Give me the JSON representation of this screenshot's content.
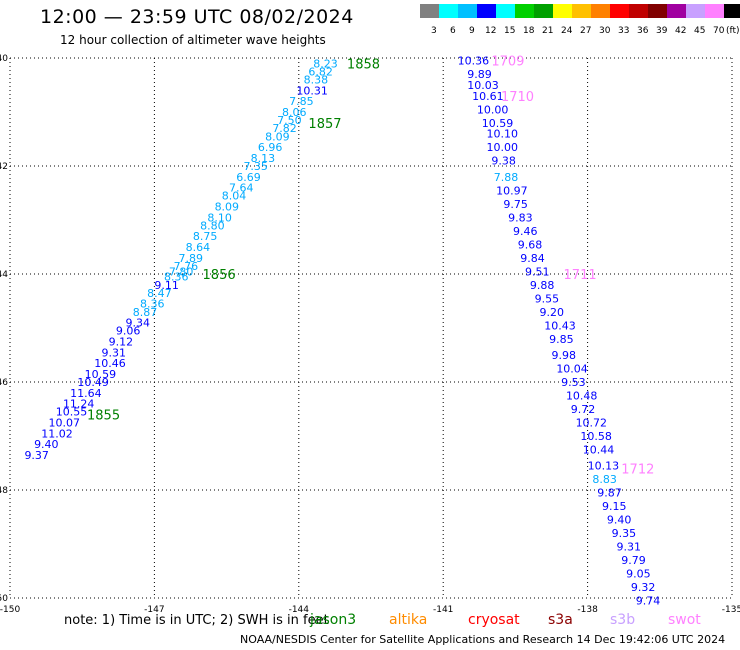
{
  "header": {
    "title": "12:00 — 23:59 UTC 08/02/2024",
    "subtitle": "12 hour collection of altimeter wave heights"
  },
  "color_scale": {
    "colors": [
      "#808080",
      "#00ffff",
      "#00c0ff",
      "#0000ff",
      "#00ffff",
      "#00d000",
      "#00a000",
      "#ffff00",
      "#ffc000",
      "#ff8000",
      "#ff0000",
      "#c00000",
      "#800000",
      "#a000a0",
      "#c8a0ff",
      "#ff80ff",
      "#000000"
    ],
    "labels": [
      "3",
      "6",
      "9",
      "12",
      "15",
      "18",
      "21",
      "24",
      "27",
      "30",
      "33",
      "36",
      "39",
      "42",
      "45",
      "70",
      "(ft)"
    ]
  },
  "footer": {
    "note": "note: 1) Time is in UTC; 2) SWH is in feet",
    "credit": "NOAA/NESDIS Center for Satellite Applications and Research    14 Dec 19:42:06 UTC 2024"
  },
  "satellites": [
    {
      "name": "jason3",
      "color": "#008000"
    },
    {
      "name": "altika",
      "color": "#ff8c00"
    },
    {
      "name": "cryosat",
      "color": "#ff0000"
    },
    {
      "name": "s3a",
      "color": "#8b0000"
    },
    {
      "name": "s3b",
      "color": "#c8a0ff"
    },
    {
      "name": "swot",
      "color": "#ff80ff"
    }
  ],
  "chart_data": {
    "type": "scatter",
    "xlim": [
      -150,
      -135
    ],
    "ylim": [
      -50,
      -40
    ],
    "xticks": [
      -150,
      -147,
      -144,
      -141,
      -138,
      -135
    ],
    "yticks": [
      -40,
      -42,
      -44,
      -46,
      -48,
      -50
    ],
    "xticklabels": [
      "-150",
      "-147",
      "-144",
      "-141",
      "-138",
      "-135"
    ],
    "yticklabels": [
      "-40",
      "-42",
      "-44",
      "-46",
      "-48",
      "-50"
    ],
    "grid": true,
    "tracks": [
      {
        "satellite": "jason3",
        "labels": [
          {
            "text": "1858",
            "x": -143.0,
            "y": -40.1
          },
          {
            "text": "1857",
            "x": -143.8,
            "y": -41.2
          },
          {
            "text": "1856",
            "x": -146.0,
            "y": -44.0
          },
          {
            "text": "1855",
            "x": -148.4,
            "y": -46.6
          }
        ],
        "points": [
          {
            "x": -149.7,
            "y": -47.35,
            "v": "9.37",
            "c": "#0000ff"
          },
          {
            "x": -149.5,
            "y": -47.15,
            "v": "9.40",
            "c": "#0000ff"
          },
          {
            "x": -149.35,
            "y": -46.95,
            "v": "11.02",
            "c": "#0000ff"
          },
          {
            "x": -149.2,
            "y": -46.75,
            "v": "10.07",
            "c": "#0000ff"
          },
          {
            "x": -149.05,
            "y": -46.55,
            "v": "10.55",
            "c": "#0000ff"
          },
          {
            "x": -148.9,
            "y": -46.4,
            "v": "11.24",
            "c": "#0000ff"
          },
          {
            "x": -148.75,
            "y": -46.2,
            "v": "11.64",
            "c": "#0000ff"
          },
          {
            "x": -148.6,
            "y": -46.0,
            "v": "10.49",
            "c": "#0000ff"
          },
          {
            "x": -148.45,
            "y": -45.85,
            "v": "10.59",
            "c": "#0000ff"
          },
          {
            "x": -148.25,
            "y": -45.65,
            "v": "10.46",
            "c": "#0000ff"
          },
          {
            "x": -148.1,
            "y": -45.45,
            "v": "9.31",
            "c": "#0000ff"
          },
          {
            "x": -147.95,
            "y": -45.25,
            "v": "9.12",
            "c": "#0000ff"
          },
          {
            "x": -147.8,
            "y": -45.05,
            "v": "9.06",
            "c": "#0000ff"
          },
          {
            "x": -147.6,
            "y": -44.9,
            "v": "9.34",
            "c": "#0000ff"
          },
          {
            "x": -147.45,
            "y": -44.7,
            "v": "8.87",
            "c": "#00aaff"
          },
          {
            "x": -147.3,
            "y": -44.55,
            "v": "8.36",
            "c": "#00aaff"
          },
          {
            "x": -147.15,
            "y": -44.35,
            "v": "8.47",
            "c": "#00aaff"
          },
          {
            "x": -147.0,
            "y": -44.2,
            "v": "9.11",
            "c": "#0000ff"
          },
          {
            "x": -146.8,
            "y": -44.05,
            "v": "8.36",
            "c": "#00aaff"
          },
          {
            "x": -146.7,
            "y": -43.95,
            "v": "7.80",
            "c": "#00aaff"
          },
          {
            "x": -146.6,
            "y": -43.85,
            "v": "7.76",
            "c": "#00aaff"
          },
          {
            "x": -146.5,
            "y": -43.7,
            "v": "7.89",
            "c": "#00aaff"
          },
          {
            "x": -146.35,
            "y": -43.5,
            "v": "8.64",
            "c": "#00aaff"
          },
          {
            "x": -146.2,
            "y": -43.3,
            "v": "8.75",
            "c": "#00aaff"
          },
          {
            "x": -146.05,
            "y": -43.1,
            "v": "8.80",
            "c": "#00aaff"
          },
          {
            "x": -145.9,
            "y": -42.95,
            "v": "8.10",
            "c": "#00aaff"
          },
          {
            "x": -145.75,
            "y": -42.75,
            "v": "8.09",
            "c": "#00aaff"
          },
          {
            "x": -145.6,
            "y": -42.55,
            "v": "8.04",
            "c": "#00aaff"
          },
          {
            "x": -145.45,
            "y": -42.4,
            "v": "7.64",
            "c": "#00aaff"
          },
          {
            "x": -145.3,
            "y": -42.2,
            "v": "6.69",
            "c": "#00aaff"
          },
          {
            "x": -145.15,
            "y": -42.0,
            "v": "7.35",
            "c": "#00aaff"
          },
          {
            "x": -145.0,
            "y": -41.85,
            "v": "8.13",
            "c": "#00aaff"
          },
          {
            "x": -144.85,
            "y": -41.65,
            "v": "6.96",
            "c": "#00aaff"
          },
          {
            "x": -144.7,
            "y": -41.45,
            "v": "8.09",
            "c": "#00aaff"
          },
          {
            "x": -144.55,
            "y": -41.3,
            "v": "7.82",
            "c": "#00aaff"
          },
          {
            "x": -144.45,
            "y": -41.15,
            "v": "7.50",
            "c": "#00aaff"
          },
          {
            "x": -144.35,
            "y": -41.0,
            "v": "8.06",
            "c": "#00aaff"
          },
          {
            "x": -144.2,
            "y": -40.8,
            "v": "7.85",
            "c": "#00aaff"
          },
          {
            "x": -144.05,
            "y": -40.6,
            "v": "10.31",
            "c": "#0000ff"
          },
          {
            "x": -143.9,
            "y": -40.4,
            "v": "8.38",
            "c": "#00aaff"
          },
          {
            "x": -143.8,
            "y": -40.25,
            "v": "6.82",
            "c": "#00aaff"
          },
          {
            "x": -143.7,
            "y": -40.1,
            "v": "8.23",
            "c": "#00aaff"
          }
        ]
      },
      {
        "satellite": "swot",
        "labels": [
          {
            "text": "1709",
            "x": -140.0,
            "y": -40.05
          },
          {
            "text": "1710",
            "x": -139.8,
            "y": -40.7
          },
          {
            "text": "1711",
            "x": -138.5,
            "y": -44.0
          },
          {
            "text": "1712",
            "x": -137.3,
            "y": -47.6
          }
        ],
        "points": [
          {
            "x": -140.7,
            "y": -40.05,
            "v": "10.36",
            "c": "#0000ff"
          },
          {
            "x": -140.5,
            "y": -40.3,
            "v": "9.89",
            "c": "#0000ff"
          },
          {
            "x": -140.5,
            "y": -40.5,
            "v": "10.03",
            "c": "#0000ff"
          },
          {
            "x": -140.4,
            "y": -40.7,
            "v": "10.61",
            "c": "#0000ff"
          },
          {
            "x": -140.3,
            "y": -40.95,
            "v": "10.00",
            "c": "#0000ff"
          },
          {
            "x": -140.2,
            "y": -41.2,
            "v": "10.59",
            "c": "#0000ff"
          },
          {
            "x": -140.1,
            "y": -41.4,
            "v": "10.10",
            "c": "#0000ff"
          },
          {
            "x": -140.1,
            "y": -41.65,
            "v": "10.00",
            "c": "#0000ff"
          },
          {
            "x": -140.0,
            "y": -41.9,
            "v": "9.38",
            "c": "#0000ff"
          },
          {
            "x": -139.95,
            "y": -42.2,
            "v": "7.88",
            "c": "#00aaff"
          },
          {
            "x": -139.9,
            "y": -42.45,
            "v": "10.97",
            "c": "#0000ff"
          },
          {
            "x": -139.75,
            "y": -42.7,
            "v": "9.75",
            "c": "#0000ff"
          },
          {
            "x": -139.65,
            "y": -42.95,
            "v": "9.83",
            "c": "#0000ff"
          },
          {
            "x": -139.55,
            "y": -43.2,
            "v": "9.46",
            "c": "#0000ff"
          },
          {
            "x": -139.45,
            "y": -43.45,
            "v": "9.68",
            "c": "#0000ff"
          },
          {
            "x": -139.4,
            "y": -43.7,
            "v": "9.84",
            "c": "#0000ff"
          },
          {
            "x": -139.3,
            "y": -43.95,
            "v": "9.51",
            "c": "#0000ff"
          },
          {
            "x": -139.2,
            "y": -44.2,
            "v": "9.88",
            "c": "#0000ff"
          },
          {
            "x": -139.1,
            "y": -44.45,
            "v": "9.55",
            "c": "#0000ff"
          },
          {
            "x": -139.0,
            "y": -44.7,
            "v": "9.20",
            "c": "#0000ff"
          },
          {
            "x": -138.9,
            "y": -44.95,
            "v": "10.43",
            "c": "#0000ff"
          },
          {
            "x": -138.8,
            "y": -45.2,
            "v": "9.85",
            "c": "#0000ff"
          },
          {
            "x": -138.75,
            "y": -45.5,
            "v": "9.98",
            "c": "#0000ff"
          },
          {
            "x": -138.65,
            "y": -45.75,
            "v": "10.04",
            "c": "#0000ff"
          },
          {
            "x": -138.55,
            "y": -46.0,
            "v": "9.53",
            "c": "#0000ff"
          },
          {
            "x": -138.45,
            "y": -46.25,
            "v": "10.48",
            "c": "#0000ff"
          },
          {
            "x": -138.35,
            "y": -46.5,
            "v": "9.72",
            "c": "#0000ff"
          },
          {
            "x": -138.25,
            "y": -46.75,
            "v": "10.72",
            "c": "#0000ff"
          },
          {
            "x": -138.15,
            "y": -47.0,
            "v": "10.58",
            "c": "#0000ff"
          },
          {
            "x": -138.1,
            "y": -47.25,
            "v": "10.44",
            "c": "#0000ff"
          },
          {
            "x": -138.0,
            "y": -47.55,
            "v": "10.13",
            "c": "#0000ff"
          },
          {
            "x": -137.9,
            "y": -47.8,
            "v": "8.83",
            "c": "#00aaff"
          },
          {
            "x": -137.8,
            "y": -48.05,
            "v": "9.87",
            "c": "#0000ff"
          },
          {
            "x": -137.7,
            "y": -48.3,
            "v": "9.15",
            "c": "#0000ff"
          },
          {
            "x": -137.6,
            "y": -48.55,
            "v": "9.40",
            "c": "#0000ff"
          },
          {
            "x": -137.5,
            "y": -48.8,
            "v": "9.35",
            "c": "#0000ff"
          },
          {
            "x": -137.4,
            "y": -49.05,
            "v": "9.31",
            "c": "#0000ff"
          },
          {
            "x": -137.3,
            "y": -49.3,
            "v": "9.79",
            "c": "#0000ff"
          },
          {
            "x": -137.2,
            "y": -49.55,
            "v": "9.05",
            "c": "#0000ff"
          },
          {
            "x": -137.1,
            "y": -49.8,
            "v": "9.32",
            "c": "#0000ff"
          },
          {
            "x": -137.0,
            "y": -50.05,
            "v": "9.74",
            "c": "#0000ff"
          }
        ]
      }
    ]
  }
}
